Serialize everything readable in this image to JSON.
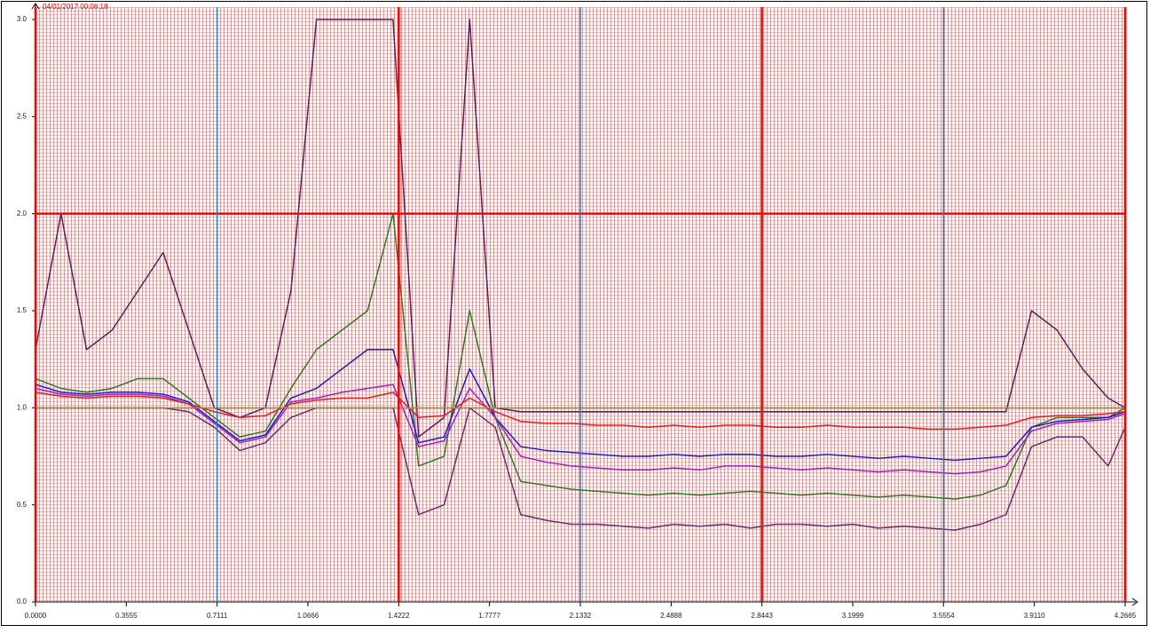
{
  "chart_data": {
    "type": "line",
    "annotation": "04/01/2017 00:06:18",
    "x": [
      0,
      0.1,
      0.2,
      0.3,
      0.4,
      0.5,
      0.6,
      0.7,
      0.8,
      0.9,
      1.0,
      1.1,
      1.2,
      1.3,
      1.4,
      1.5,
      1.6,
      1.7,
      1.8,
      1.9,
      2.0,
      2.1,
      2.2,
      2.3,
      2.4,
      2.5,
      2.6,
      2.7,
      2.8,
      2.9,
      3.0,
      3.1,
      3.2,
      3.3,
      3.4,
      3.5,
      3.6,
      3.7,
      3.8,
      3.9,
      4.0,
      4.1,
      4.2,
      4.2665
    ],
    "series": [
      {
        "color": "#5a1f5a",
        "values": [
          1.3,
          2.0,
          1.3,
          1.4,
          1.6,
          1.8,
          1.4,
          1.0,
          0.95,
          1.0,
          1.6,
          3.0,
          3.0,
          3.0,
          3.0,
          0.85,
          0.95,
          3.0,
          1.0,
          0.98,
          0.98,
          0.98,
          0.98,
          0.98,
          0.98,
          0.98,
          0.98,
          0.98,
          0.98,
          0.98,
          0.98,
          0.98,
          0.98,
          0.98,
          0.98,
          0.98,
          0.98,
          0.98,
          0.98,
          1.5,
          1.4,
          1.2,
          1.05,
          1.0
        ]
      },
      {
        "color": "#6a2c6a",
        "values": [
          1.0,
          1.0,
          1.0,
          1.0,
          1.0,
          1.0,
          0.98,
          0.9,
          0.78,
          0.82,
          0.95,
          1.0,
          1.0,
          1.0,
          1.0,
          0.45,
          0.5,
          1.0,
          0.9,
          0.45,
          0.42,
          0.4,
          0.4,
          0.39,
          0.38,
          0.4,
          0.39,
          0.4,
          0.38,
          0.4,
          0.4,
          0.39,
          0.4,
          0.38,
          0.39,
          0.38,
          0.37,
          0.4,
          0.45,
          0.8,
          0.85,
          0.85,
          0.7,
          0.9
        ]
      },
      {
        "color": "#2a7a2a",
        "values": [
          1.15,
          1.1,
          1.08,
          1.1,
          1.15,
          1.15,
          1.05,
          0.95,
          0.85,
          0.88,
          1.1,
          1.3,
          1.4,
          1.5,
          2.0,
          0.7,
          0.75,
          1.5,
          0.95,
          0.62,
          0.6,
          0.58,
          0.57,
          0.56,
          0.55,
          0.56,
          0.55,
          0.56,
          0.57,
          0.56,
          0.55,
          0.56,
          0.55,
          0.54,
          0.55,
          0.54,
          0.53,
          0.55,
          0.6,
          0.9,
          0.95,
          0.95,
          0.95,
          1.0
        ]
      },
      {
        "color": "#1a1ad0",
        "values": [
          1.12,
          1.08,
          1.07,
          1.08,
          1.08,
          1.07,
          1.03,
          0.93,
          0.83,
          0.86,
          1.05,
          1.1,
          1.2,
          1.3,
          1.3,
          0.82,
          0.85,
          1.2,
          0.95,
          0.8,
          0.78,
          0.77,
          0.76,
          0.75,
          0.75,
          0.76,
          0.75,
          0.76,
          0.76,
          0.75,
          0.75,
          0.76,
          0.75,
          0.74,
          0.75,
          0.74,
          0.73,
          0.74,
          0.75,
          0.9,
          0.93,
          0.94,
          0.95,
          0.98
        ]
      },
      {
        "color": "#a020c0",
        "values": [
          1.1,
          1.07,
          1.06,
          1.07,
          1.07,
          1.06,
          1.02,
          0.92,
          0.82,
          0.85,
          1.03,
          1.05,
          1.08,
          1.1,
          1.12,
          0.8,
          0.83,
          1.1,
          0.95,
          0.75,
          0.72,
          0.7,
          0.69,
          0.68,
          0.68,
          0.69,
          0.68,
          0.7,
          0.7,
          0.69,
          0.68,
          0.69,
          0.68,
          0.67,
          0.68,
          0.67,
          0.66,
          0.67,
          0.7,
          0.88,
          0.92,
          0.93,
          0.94,
          0.97
        ]
      },
      {
        "color": "#e02020",
        "values": [
          1.08,
          1.06,
          1.05,
          1.06,
          1.06,
          1.05,
          1.02,
          0.98,
          0.95,
          0.96,
          1.02,
          1.04,
          1.05,
          1.05,
          1.08,
          0.95,
          0.96,
          1.05,
          0.98,
          0.93,
          0.92,
          0.92,
          0.91,
          0.91,
          0.9,
          0.91,
          0.9,
          0.91,
          0.91,
          0.9,
          0.9,
          0.91,
          0.9,
          0.9,
          0.9,
          0.89,
          0.89,
          0.9,
          0.91,
          0.95,
          0.96,
          0.96,
          0.97,
          0.98
        ]
      },
      {
        "color": "#9a9a20",
        "values": [
          1.0,
          1.0,
          1.0,
          1.0,
          1.0,
          1.0,
          1.0,
          1.0,
          1.0,
          1.0,
          1.0,
          1.0,
          1.0,
          1.0,
          1.0,
          1.0,
          1.0,
          1.0,
          1.0,
          1.0,
          1.0,
          1.0,
          1.0,
          1.0,
          1.0,
          1.0,
          1.0,
          1.0,
          1.0,
          1.0,
          1.0,
          1.0,
          1.0,
          1.0,
          1.0,
          1.0,
          1.0,
          1.0,
          1.0,
          1.0,
          1.0,
          1.0,
          1.0,
          1.0
        ]
      }
    ],
    "xlim": [
      0,
      4.2665
    ],
    "ylim": [
      0,
      3
    ],
    "xticks": [
      {
        "value": 0,
        "label": "0.0000"
      },
      0.3555,
      0.7111,
      1.0666,
      1.4222,
      1.7777,
      2.1332,
      2.4888,
      2.8443,
      3.1999,
      3.5554,
      {
        "value": 3.911,
        "label": "3.9110"
      },
      4.2665
    ],
    "yticks": [
      {
        "value": 0,
        "label": "0.0"
      },
      0.5,
      {
        "value": 1,
        "label": "1.0"
      },
      1.5,
      {
        "value": 2,
        "label": "2.0"
      },
      2.5,
      {
        "value": 3,
        "label": "3.0"
      }
    ],
    "vlines": [
      {
        "value": 0,
        "color": "#ff0000"
      },
      {
        "value": 0.7111,
        "color": "#1f7fc4"
      },
      {
        "value": 1.4222,
        "color": "#ff0000"
      },
      {
        "value": 2.1332,
        "color": "#1f7fc4"
      },
      {
        "value": 2.8443,
        "color": "#ff0000"
      },
      {
        "value": 3.5554,
        "color": "#1f7fc4"
      },
      {
        "value": 4.2665,
        "color": "#ff0000"
      }
    ],
    "hlines": [
      {
        "value": 2,
        "color": "#ff0000"
      }
    ],
    "grid": true
  }
}
